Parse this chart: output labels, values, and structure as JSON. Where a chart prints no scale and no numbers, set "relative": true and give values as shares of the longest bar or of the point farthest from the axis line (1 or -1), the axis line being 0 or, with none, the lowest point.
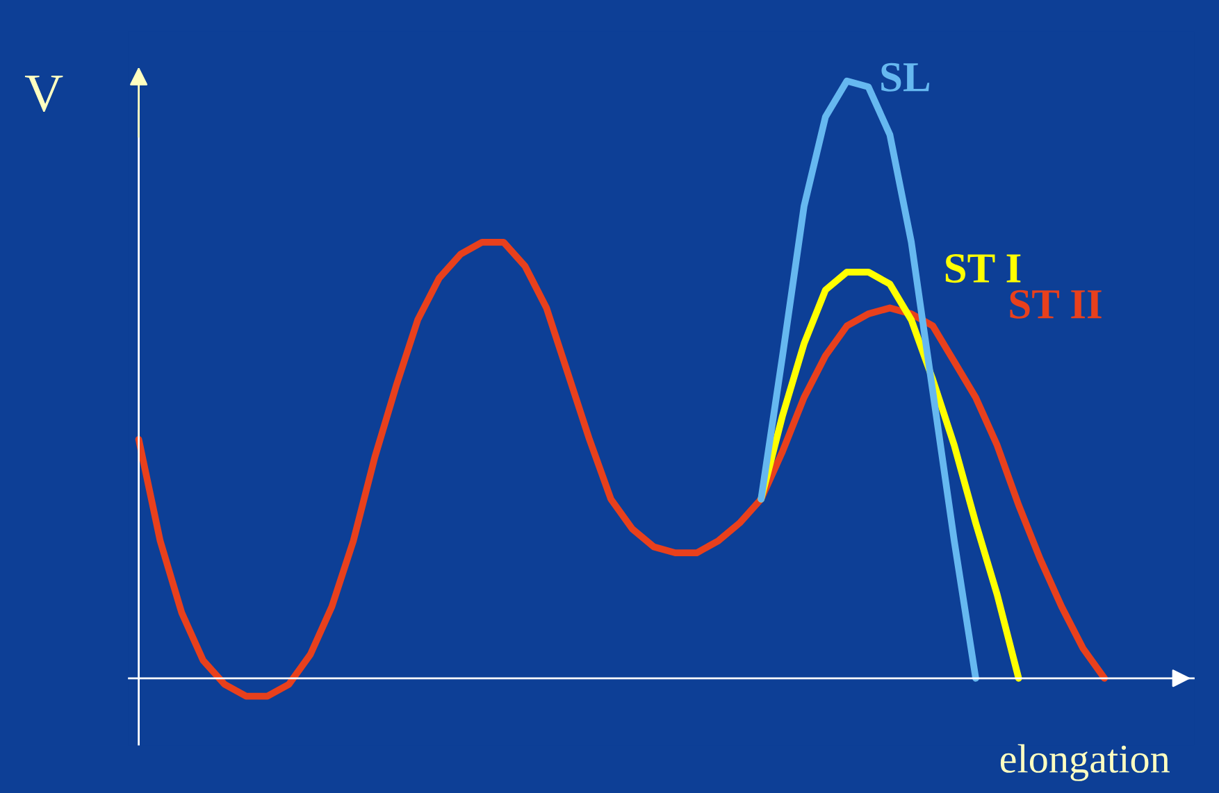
{
  "chart_data": {
    "type": "line",
    "relative": true,
    "xlabel": "elongation",
    "ylabel": "V",
    "categories": [
      null,
      null,
      null,
      null,
      null,
      null,
      null,
      null,
      null,
      null,
      null,
      null,
      null,
      null,
      null,
      null,
      null,
      null,
      null,
      null,
      null,
      null,
      null,
      null,
      null,
      null,
      null,
      null,
      null,
      null,
      null,
      null,
      null,
      null,
      null,
      null,
      null,
      null,
      null,
      null,
      null,
      null,
      null,
      null,
      null,
      null,
      null,
      null,
      null
    ],
    "series": [
      {
        "name": "ST II",
        "color": "#e8401c",
        "values": [
          0.4,
          0.23,
          0.11,
          0.03,
          -0.01,
          -0.03,
          -0.03,
          -0.01,
          0.04,
          0.12,
          0.23,
          0.37,
          0.49,
          0.6,
          0.67,
          0.71,
          0.73,
          0.73,
          0.69,
          0.62,
          0.51,
          0.4,
          0.3,
          0.25,
          0.22,
          0.21,
          0.21,
          0.23,
          0.26,
          0.3,
          0.38,
          0.47,
          0.54,
          0.59,
          0.61,
          0.62,
          0.61,
          0.59,
          0.53,
          0.47,
          0.39,
          0.29,
          0.2,
          0.12,
          0.05,
          0.0,
          null,
          null,
          null
        ]
      },
      {
        "name": "ST I",
        "color": "#ffff00",
        "values": [
          null,
          null,
          null,
          null,
          null,
          null,
          null,
          null,
          null,
          null,
          null,
          null,
          null,
          null,
          null,
          null,
          null,
          null,
          null,
          null,
          null,
          null,
          null,
          null,
          null,
          null,
          null,
          null,
          null,
          0.3,
          0.44,
          0.56,
          0.65,
          0.68,
          0.68,
          0.66,
          0.6,
          0.5,
          0.39,
          0.26,
          0.14,
          0.0,
          null,
          null,
          null,
          null,
          null,
          null,
          null
        ]
      },
      {
        "name": "SL",
        "color": "#66b8f0",
        "values": [
          null,
          null,
          null,
          null,
          null,
          null,
          null,
          null,
          null,
          null,
          null,
          null,
          null,
          null,
          null,
          null,
          null,
          null,
          null,
          null,
          null,
          null,
          null,
          null,
          null,
          null,
          null,
          null,
          null,
          0.3,
          0.54,
          0.79,
          0.94,
          1.0,
          0.99,
          0.91,
          0.73,
          0.48,
          0.23,
          0.0,
          null,
          null,
          null,
          null,
          null,
          null,
          null,
          null,
          null
        ]
      }
    ],
    "legend": false,
    "marker": "none",
    "line_style": "solid"
  }
}
